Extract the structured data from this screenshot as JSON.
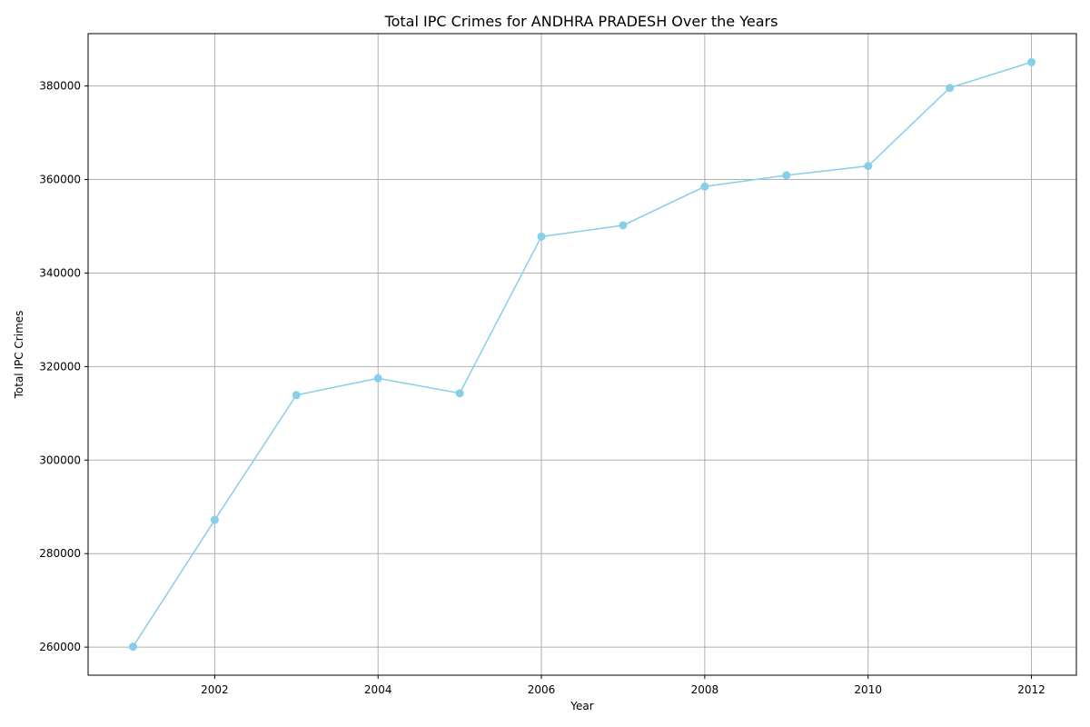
{
  "chart_data": {
    "type": "line",
    "title": "Total IPC Crimes for ANDHRA PRADESH Over the Years",
    "xlabel": "Year",
    "ylabel": "Total IPC Crimes",
    "x": [
      2001,
      2002,
      2003,
      2004,
      2005,
      2006,
      2007,
      2008,
      2009,
      2010,
      2011,
      2012
    ],
    "series": [
      {
        "values": [
          260100,
          287200,
          313900,
          317500,
          314300,
          347800,
          350200,
          358500,
          360900,
          362900,
          379600,
          385100
        ],
        "color": "#87ceeb",
        "marker": "circle"
      }
    ],
    "xlim": [
      2000.45,
      2012.55
    ],
    "ylim": [
      254000,
      391200
    ],
    "xticks": [
      2002,
      2004,
      2006,
      2008,
      2010,
      2012
    ],
    "yticks": [
      260000,
      280000,
      300000,
      320000,
      340000,
      360000,
      380000
    ],
    "grid": true,
    "legend": "none"
  }
}
